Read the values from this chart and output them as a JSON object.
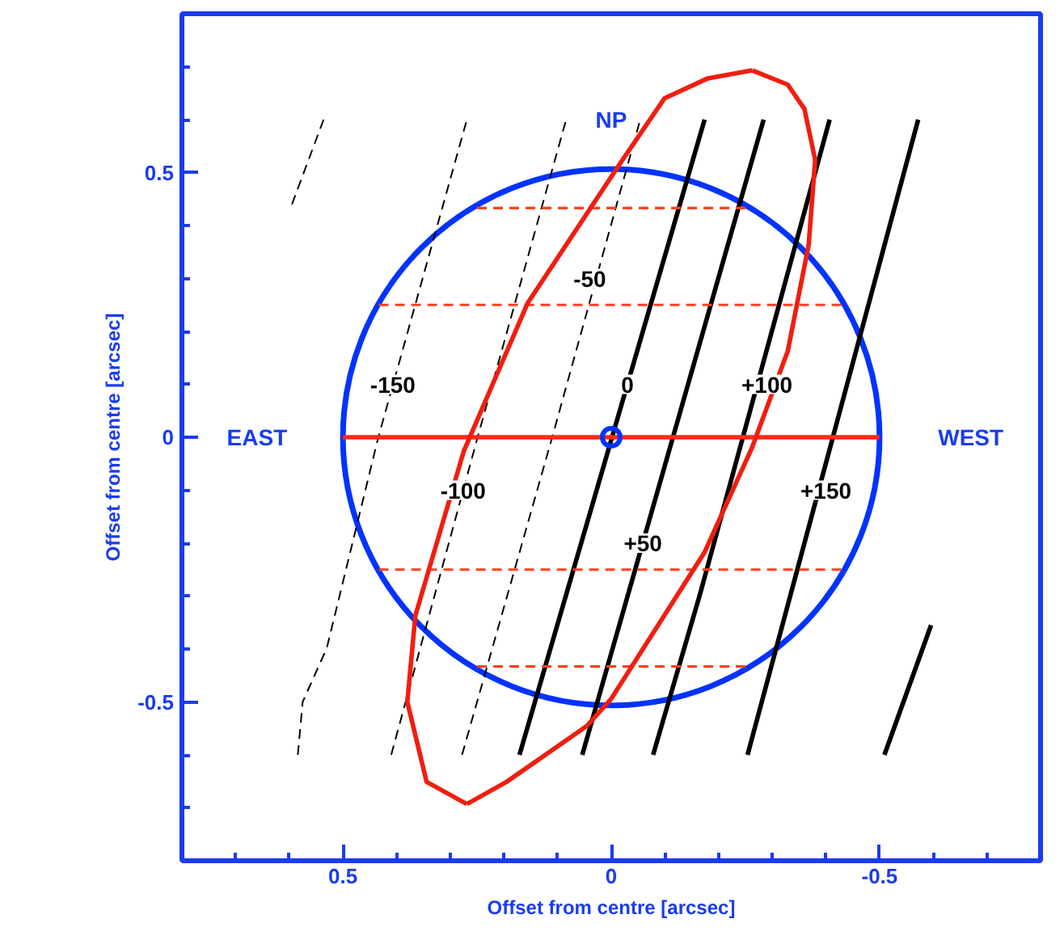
{
  "chart_data": {
    "type": "line",
    "xlabel": "Offset from centre [arcsec]",
    "ylabel": "Offset from centre [arcsec]",
    "xlim": [
      0.8,
      -0.8
    ],
    "ylim": [
      -0.8,
      0.8
    ],
    "xticks": [
      0.5,
      0,
      -0.5,
      {
        "value": 0.7,
        "label": null
      },
      {
        "value": 0.6,
        "label": null
      },
      {
        "value": 0.4,
        "label": null
      },
      {
        "value": 0.3,
        "label": null
      },
      {
        "value": 0.2,
        "label": null
      },
      {
        "value": 0.1,
        "label": null
      },
      {
        "value": -0.1,
        "label": null
      },
      {
        "value": -0.2,
        "label": null
      },
      {
        "value": -0.3,
        "label": null
      },
      {
        "value": -0.4,
        "label": null
      },
      {
        "value": -0.6,
        "label": null
      },
      {
        "value": -0.7,
        "label": null
      }
    ],
    "yticks": [
      0.5,
      0,
      -0.5,
      {
        "value": 0.7,
        "label": null
      },
      {
        "value": 0.6,
        "label": null
      },
      {
        "value": 0.4,
        "label": null
      },
      {
        "value": 0.3,
        "label": null
      },
      {
        "value": 0.2,
        "label": null
      },
      {
        "value": 0.1,
        "label": null
      },
      {
        "value": -0.1,
        "label": null
      },
      {
        "value": -0.2,
        "label": null
      },
      {
        "value": -0.3,
        "label": null
      },
      {
        "value": -0.4,
        "label": null
      },
      {
        "value": -0.6,
        "label": null
      },
      {
        "value": -0.7,
        "label": null
      }
    ],
    "grid": false,
    "series": [
      {
        "color": "#000000",
        "line_style": "dashed",
        "x": [
          0.536,
          0.596
        ],
        "values": [
          0.6,
          0.437
        ]
      },
      {
        "color": "#000000",
        "line_style": "dashed",
        "x": [
          0.584,
          0.575,
          0.53,
          0.434,
          0.269
        ],
        "values": [
          -0.6,
          -0.5,
          -0.398,
          0,
          0.6
        ]
      },
      {
        "color": "#000000",
        "line_style": "dashed",
        "x": [
          0.41,
          0.249,
          0.084
        ],
        "values": [
          -0.6,
          0,
          0.6
        ]
      },
      {
        "color": "#000000",
        "line_style": "dashed",
        "x": [
          0.278,
          0.11,
          -0.054
        ],
        "values": [
          -0.6,
          0,
          0.6
        ]
      },
      {
        "color": "#000000",
        "line_style": "solid",
        "x": [
          0.171,
          -0.174
        ],
        "values": [
          -0.6,
          0.6
        ]
      },
      {
        "color": "#000000",
        "line_style": "solid",
        "x": [
          0.054,
          -0.284
        ],
        "values": [
          -0.6,
          0.6
        ]
      },
      {
        "color": "#000000",
        "line_style": "solid",
        "x": [
          -0.078,
          -0.165,
          -0.407
        ],
        "values": [
          -0.6,
          -0.298,
          0.6
        ]
      },
      {
        "color": "#000000",
        "line_style": "solid",
        "x": [
          -0.254,
          -0.572
        ],
        "values": [
          -0.6,
          0.6
        ]
      },
      {
        "color": "#000000",
        "line_style": "solid",
        "x": [
          -0.509,
          -0.596
        ],
        "values": [
          -0.6,
          -0.355
        ]
      },
      {
        "color": "#ff4020",
        "line_style": "dashed",
        "x": [
          0.25,
          -0.25
        ],
        "values": [
          0.433,
          0.433
        ]
      },
      {
        "color": "#ff4020",
        "line_style": "dashed",
        "x": [
          0.433,
          -0.433
        ],
        "values": [
          0.25,
          0.25
        ]
      },
      {
        "color": "#ff4020",
        "line_style": "dashed",
        "x": [
          0.433,
          -0.433
        ],
        "values": [
          -0.25,
          -0.25
        ]
      },
      {
        "color": "#ff4020",
        "line_style": "dashed",
        "x": [
          0.25,
          -0.25
        ],
        "values": [
          -0.433,
          -0.433
        ]
      },
      {
        "color": "#ff2a14",
        "line_style": "solid",
        "x": [
          0.5,
          -0.5
        ],
        "values": [
          0,
          0
        ]
      },
      {
        "color": "#f01e10",
        "line_style": "solid",
        "x": [
          -0.263,
          -0.329,
          -0.36,
          -0.38,
          -0.368,
          -0.329,
          -0.263,
          -0.174,
          0,
          0.045,
          0.195,
          0.269
        ],
        "values": [
          0.693,
          0.666,
          0.62,
          0.524,
          0.364,
          0.163,
          -0.018,
          -0.217,
          -0.494,
          -0.545,
          -0.651,
          -0.693
        ]
      },
      {
        "color": "#f01e10",
        "line_style": "solid",
        "x": [
          0.269,
          0.344,
          0.38,
          0.365,
          0.275,
          0.156,
          -0.015,
          -0.099,
          -0.18,
          -0.263
        ],
        "values": [
          -0.693,
          -0.651,
          -0.5,
          -0.337,
          -0.027,
          0.253,
          0.515,
          0.64,
          0.678,
          0.693
        ]
      },
      {
        "type": "scatter",
        "marker": "circle",
        "color": "#0033ff",
        "x": [
          0
        ],
        "values": [
          0
        ]
      }
    ],
    "annotations": [
      "NP",
      "EAST",
      "WEST",
      {
        "text": "-150",
        "x": 0.407,
        "y": 0.1
      },
      {
        "text": "-50",
        "x": 0.04,
        "y": 0.3
      },
      {
        "text": "0",
        "x": -0.03,
        "y": 0.1
      },
      {
        "text": "+100",
        "x": -0.29,
        "y": 0.1
      },
      {
        "text": "-100",
        "x": 0.276,
        "y": -0.1
      },
      {
        "text": "+150",
        "x": -0.4,
        "y": -0.1
      },
      {
        "text": "+50",
        "x": -0.059,
        "y": -0.2
      }
    ]
  }
}
